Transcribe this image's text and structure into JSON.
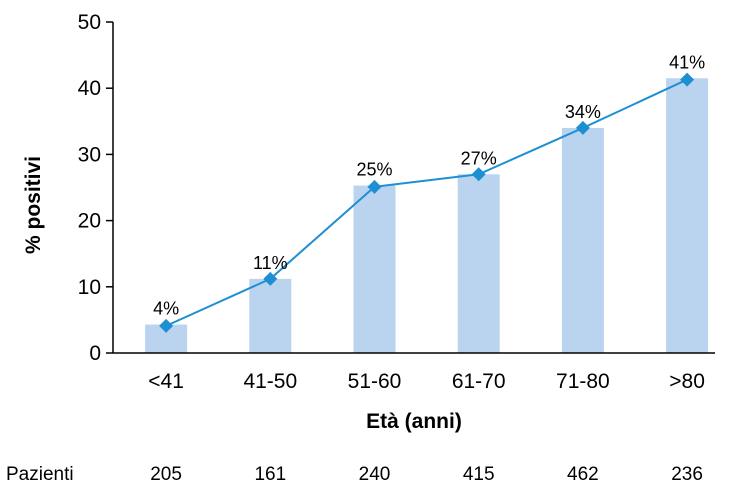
{
  "chart_data": {
    "type": "bar",
    "categories": [
      "<41",
      "41-50",
      "51-60",
      "61-70",
      "71-80",
      ">80"
    ],
    "values": [
      4.3,
      11.2,
      25.3,
      27.0,
      34.0,
      41.5
    ],
    "line_values": [
      4.1,
      11.2,
      25.1,
      27.0,
      34.0,
      41.3
    ],
    "data_labels": [
      "4%",
      "11%",
      "25%",
      "27%",
      "34%",
      "41%"
    ],
    "xlabel": "Età (anni)",
    "ylabel": "% positivi",
    "ylim": [
      0,
      50
    ],
    "yticks": [
      0,
      10,
      20,
      30,
      40,
      50
    ],
    "grid": false,
    "colors": {
      "bar": "#bad4f0",
      "line": "#1f8fd3",
      "marker": "#1f8fd3"
    }
  },
  "patients": {
    "label": "Pazienti",
    "counts": [
      "205",
      "161",
      "240",
      "415",
      "462",
      "236"
    ]
  }
}
